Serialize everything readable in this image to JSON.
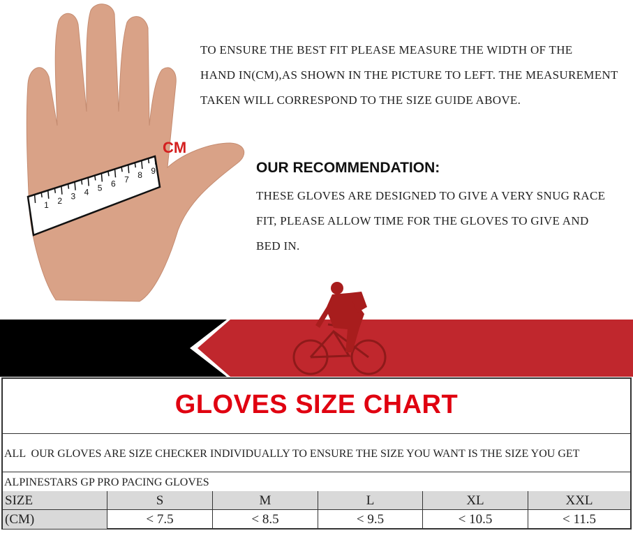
{
  "instructions": [
    "TO ENSURE THE BEST FIT PLEASE MEASURE THE WIDTH OF THE",
    "HAND IN(CM),AS SHOWN IN THE PICTURE TO LEFT. THE MEASUREMENT",
    "TAKEN WILL CORRESPOND TO THE SIZE GUIDE ABOVE."
  ],
  "ruler": {
    "unit_label": "CM",
    "ticks": [
      "1",
      "2",
      "3",
      "4",
      "5",
      "6",
      "7",
      "8",
      "9"
    ]
  },
  "recommendation": {
    "title": "OUR RECOMMENDATION:",
    "lines": [
      "THESE GLOVES ARE DESIGNED TO GIVE A VERY SNUG RACE",
      "FIT, PLEASE ALLOW TIME FOR THE GLOVES TO GIVE AND",
      "BED IN."
    ]
  },
  "colors": {
    "accent_red": "#d42020",
    "banner_red": "#c0272d",
    "banner_black": "#000000",
    "header_gray": "#d9d9d9"
  },
  "size_chart": {
    "title": "GLOVES SIZE CHART",
    "note": "ALL  OUR GLOVES ARE SIZE CHECKER INDIVIDUALLY TO ENSURE THE SIZE YOU WANT IS THE SIZE YOU GET",
    "model": "ALPINESTARS GP PRO PACING GLOVES",
    "header": [
      "SIZE",
      "S",
      "M",
      "L",
      "XL",
      "XXL"
    ],
    "row": [
      "(CM)",
      "< 7.5",
      "< 8.5",
      "< 9.5",
      "< 10.5",
      "< 11.5"
    ]
  }
}
